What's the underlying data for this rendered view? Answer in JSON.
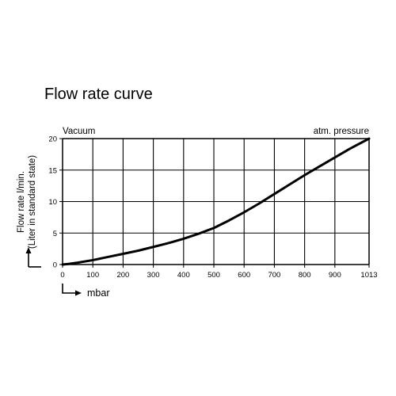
{
  "chart_data": {
    "type": "line",
    "title": "Flow rate curve",
    "xlabel": "mbar",
    "ylabel_line1": "Flow rate l/min.",
    "ylabel_line2": "(Liter in standard state)",
    "left_corner_label": "Vacuum",
    "right_corner_label": "atm. pressure",
    "x_ticks": [
      0,
      100,
      200,
      300,
      400,
      500,
      600,
      700,
      800,
      900,
      1013
    ],
    "y_ticks": [
      0,
      5,
      10,
      15,
      20
    ],
    "xlim": [
      0,
      1013
    ],
    "ylim": [
      0,
      20
    ],
    "grid": true,
    "series": [
      {
        "x": [
          0,
          20,
          50,
          100,
          150,
          200,
          250,
          300,
          350,
          400,
          450,
          500,
          550,
          600,
          650,
          700,
          750,
          800,
          850,
          900,
          950,
          1013
        ],
        "y": [
          0,
          0.1,
          0.3,
          0.7,
          1.2,
          1.7,
          2.2,
          2.8,
          3.4,
          4.1,
          4.9,
          5.8,
          7.0,
          8.3,
          9.7,
          11.2,
          12.7,
          14.2,
          15.6,
          17.0,
          18.4,
          20.0
        ]
      }
    ]
  }
}
